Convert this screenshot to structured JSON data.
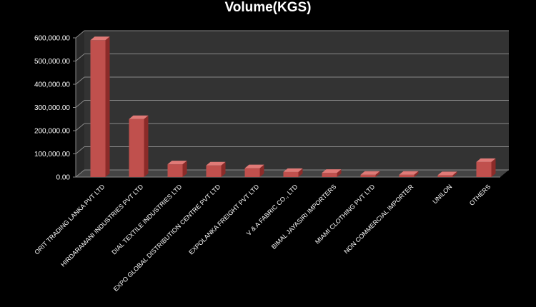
{
  "chart_data": {
    "type": "bar",
    "title": "Volume(KGS)",
    "xlabel": "",
    "ylabel": "",
    "ylim": [
      0,
      600000
    ],
    "yticks": [
      "0.00",
      "100,000.00",
      "200,000.00",
      "300,000.00",
      "400,000.00",
      "500,000.00",
      "600,000.00"
    ],
    "grid": true,
    "legend": "none",
    "three_d": true,
    "categories": [
      "ORIT TRADING LANKA PVT LTD",
      "HIRDARAMANI INDUSTRIES  PVT LTD",
      "DIAL TEXTILE INDUSTRIES  LTD",
      "EXPO GLOBAL DISTRIBUTION CENTRE  PVT LTD",
      "EXPOLANKA FREIGHT PVT LTD",
      "V & A FABRIC CO., LTD",
      "BIMAL JAYASIRI  IMPORTERS",
      "MIAMI CLOTHING PVT LTD",
      "NON COMMERCIAL IMPORTER",
      "UNILON",
      "OTHERS"
    ],
    "values": [
      590000,
      250000,
      55000,
      50000,
      38000,
      22000,
      18000,
      10000,
      10000,
      8000,
      65000
    ],
    "colors": {
      "bar_front": "#c0504d",
      "bar_side": "#8b2b29",
      "bar_top": "#e07a77",
      "wall": "#333333",
      "grid": "#8a8a8a",
      "background": "#000000",
      "text": "#ffffff"
    }
  }
}
